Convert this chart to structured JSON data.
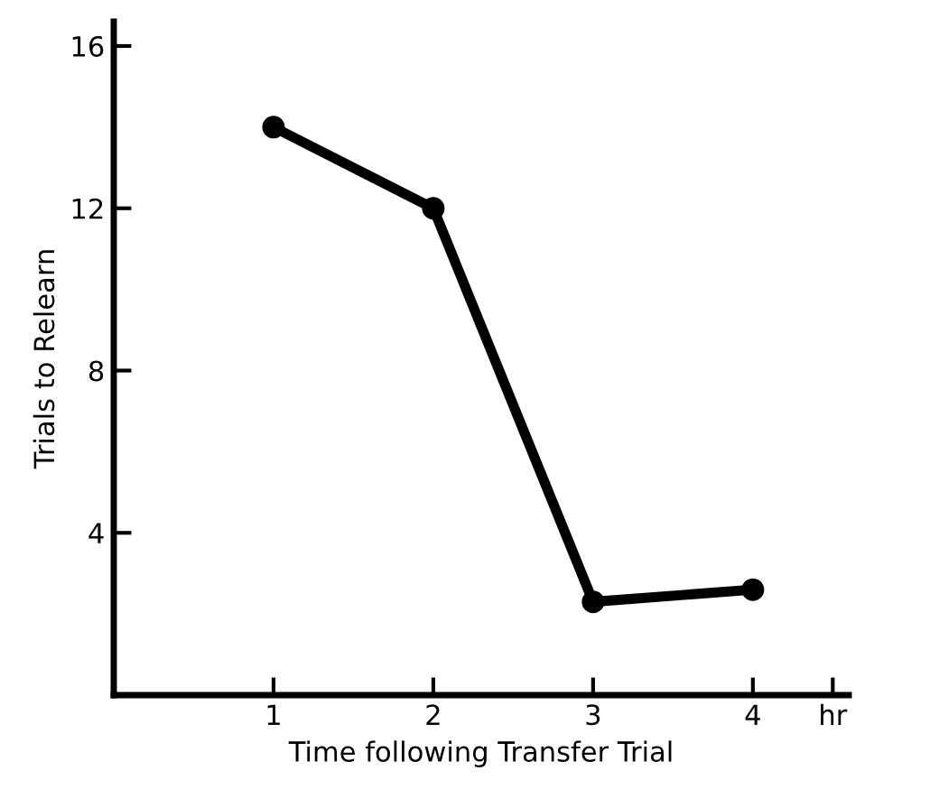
{
  "chart_data": {
    "type": "line",
    "xlabel": "Time following Transfer Trial",
    "ylabel": "Trials to Relearn",
    "x": [
      1,
      2,
      3,
      4
    ],
    "series": [
      {
        "color": "#000000",
        "values": [
          14,
          12,
          2.3,
          2.6
        ]
      }
    ],
    "xlim": [
      0,
      4.6
    ],
    "xticks": [
      1,
      2,
      3,
      4,
      {
        "value": 4.5,
        "label": "hr"
      }
    ],
    "ylim": [
      0,
      16.6
    ],
    "yticks": [
      4,
      8,
      12,
      16
    ],
    "marker": "circle",
    "line_style": "solid",
    "grid": false,
    "legend": false
  }
}
